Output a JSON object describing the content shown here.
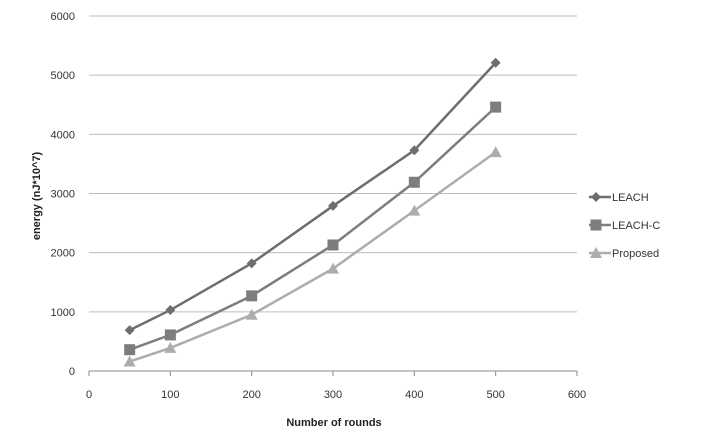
{
  "chart_data": {
    "type": "line",
    "title": "",
    "xlabel": "Number of rounds",
    "ylabel": "energy (nJ*10^7)",
    "xlim": [
      0,
      600
    ],
    "ylim": [
      0,
      6000
    ],
    "xticks": [
      0,
      100,
      200,
      300,
      400,
      500,
      600
    ],
    "yticks": [
      0,
      1000,
      2000,
      3000,
      4000,
      5000,
      6000
    ],
    "grid": "horizontal",
    "legend_position": "right",
    "series": [
      {
        "name": "LEACH",
        "marker": "diamond",
        "color": "#6e6e6e",
        "x": [
          50,
          100,
          200,
          300,
          400,
          500
        ],
        "y": [
          690,
          1030,
          1820,
          2790,
          3730,
          5210
        ]
      },
      {
        "name": "LEACH-C",
        "marker": "square",
        "color": "#7d7d7d",
        "x": [
          50,
          100,
          200,
          300,
          400,
          500
        ],
        "y": [
          360,
          610,
          1270,
          2130,
          3190,
          4460
        ]
      },
      {
        "name": "Proposed",
        "marker": "triangle",
        "color": "#adadad",
        "x": [
          50,
          100,
          200,
          300,
          400,
          500
        ],
        "y": [
          160,
          390,
          950,
          1730,
          2710,
          3700
        ]
      }
    ]
  }
}
